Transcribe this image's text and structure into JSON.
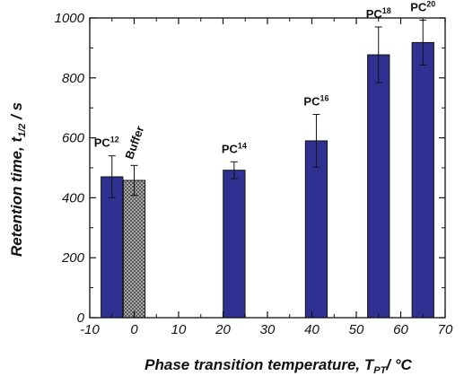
{
  "chart_data": {
    "type": "bar",
    "title": "",
    "xlabel": "Phase transition temperature, T",
    "xlabel_sub": "PT",
    "xlabel_unit": "/ °C",
    "ylabel": "Retention time, t",
    "ylabel_sub": "1/2",
    "ylabel_unit": " / s",
    "xlim": [
      -10,
      70
    ],
    "ylim": [
      0,
      1000
    ],
    "xticks": [
      -10,
      0,
      10,
      20,
      30,
      40,
      50,
      60,
      70
    ],
    "yticks": [
      0,
      200,
      400,
      600,
      800,
      1000
    ],
    "grid": false,
    "bars": [
      {
        "label": "PC",
        "label_sub": "12",
        "x": -5,
        "value": 470,
        "error": 70,
        "color": "#2e3192",
        "pattern": "solid"
      },
      {
        "label": "Buffer",
        "label_sub": "",
        "x": 0,
        "value": 458,
        "error": 50,
        "color": "#8c8c8c",
        "pattern": "crosshatch"
      },
      {
        "label": "PC",
        "label_sub": "14",
        "x": 22.5,
        "value": 492,
        "error": 28,
        "color": "#2e3192",
        "pattern": "solid"
      },
      {
        "label": "PC",
        "label_sub": "16",
        "x": 41,
        "value": 590,
        "error": 88,
        "color": "#2e3192",
        "pattern": "solid"
      },
      {
        "label": "PC",
        "label_sub": "18",
        "x": 55,
        "value": 877,
        "error": 93,
        "color": "#2e3192",
        "pattern": "solid"
      },
      {
        "label": "PC",
        "label_sub": "20",
        "x": 65,
        "value": 918,
        "error": 75,
        "color": "#2e3192",
        "pattern": "solid"
      }
    ]
  }
}
